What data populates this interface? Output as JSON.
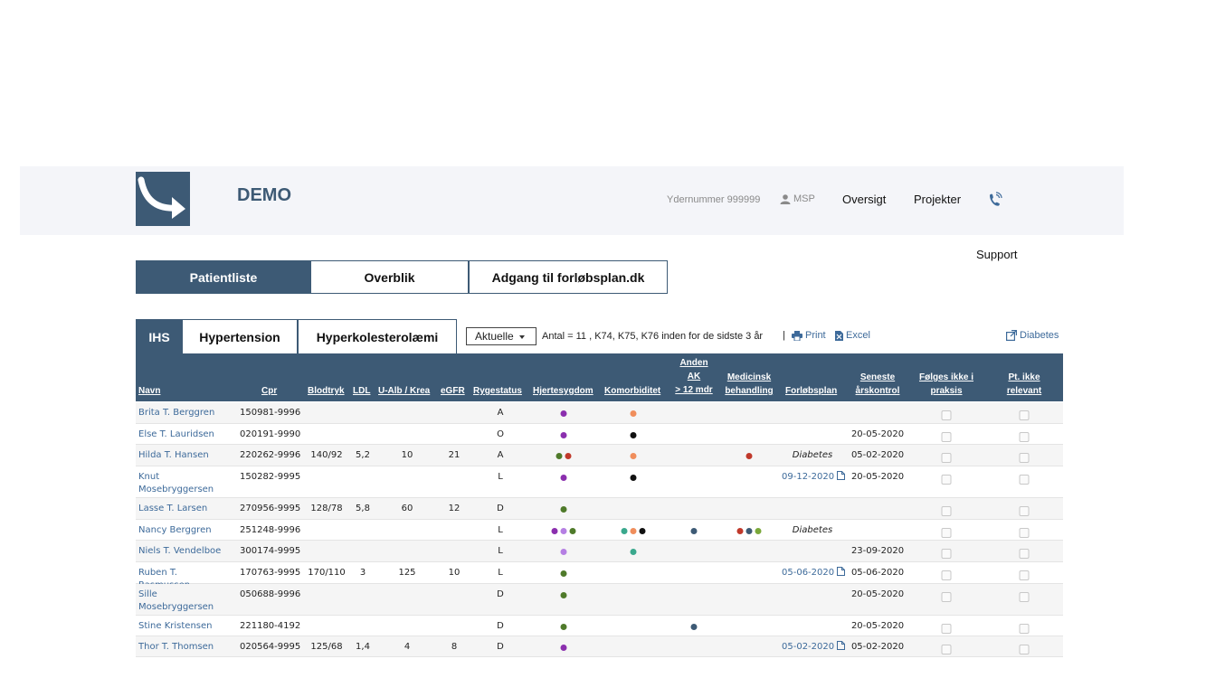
{
  "header": {
    "brand": "DEMO",
    "ydernummer": "Ydernummer 999999",
    "user": "MSP",
    "nav": [
      "Oversigt",
      "Projekter"
    ],
    "support": "Support"
  },
  "main_tabs": [
    "Patientliste",
    "Overblik",
    "Adgang til forløbsplan.dk"
  ],
  "sub_tabs": [
    "IHS",
    "Hypertension",
    "Hyperkolesterolæmi"
  ],
  "filter": {
    "selected": "Aktuelle"
  },
  "summary": "Antal = 11 , K74, K75, K76 inden for de sidste 3 år",
  "separator": "|",
  "tools": {
    "print": "Print",
    "excel": "Excel",
    "diabetes": "Diabetes"
  },
  "columns": {
    "navn": "Navn",
    "cpr": "Cpr",
    "blodtryk": "Blodtryk",
    "ldl": "LDL",
    "ualb": "U-Alb / Krea",
    "egfr": "eGFR",
    "rygestatus": "Rygestatus",
    "hjerte": "Hjertesygdom",
    "komorb": "Komorbiditet",
    "anden_ak": [
      "Anden",
      "AK",
      "> 12 mdr"
    ],
    "medicinsk": [
      "Medicinsk",
      "behandling"
    ],
    "forlob": "Forløbsplan",
    "seneste": [
      "Seneste",
      "årskontrol"
    ],
    "folges": [
      "Følges ikke i",
      "praksis"
    ],
    "ptikke": [
      "Pt. ikke",
      "relevant"
    ]
  },
  "colors": {
    "purple": "#8b2fae",
    "lavender": "#b57fe3",
    "green": "#4f7a2a",
    "red": "#c0392b",
    "orange": "#f08e5c",
    "black": "#111111",
    "teal": "#3aa88d",
    "navy": "#3d5a75",
    "olive": "#7aa83a",
    "header_bg": "#3d5a75"
  },
  "patients": [
    {
      "name": "Brita T. Berggren",
      "cpr": "150981-9996",
      "bt": "",
      "ldl": "",
      "ualb": "",
      "egfr": "",
      "ryg": "A",
      "hjerte": [
        "purple"
      ],
      "komorb": [
        "orange"
      ],
      "ak": [],
      "med": [],
      "plan": "",
      "plan_type": "",
      "seneste": ""
    },
    {
      "name": "Else T. Lauridsen",
      "cpr": "020191-9990",
      "bt": "",
      "ldl": "",
      "ualb": "",
      "egfr": "",
      "ryg": "O",
      "hjerte": [
        "purple"
      ],
      "komorb": [
        "black"
      ],
      "ak": [],
      "med": [],
      "plan": "",
      "plan_type": "",
      "seneste": "20-05-2020"
    },
    {
      "name": "Hilda T. Hansen",
      "cpr": "220262-9996",
      "bt": "140/92",
      "ldl": "5,2",
      "ualb": "10",
      "egfr": "21",
      "ryg": "A",
      "hjerte": [
        "green",
        "red"
      ],
      "komorb": [
        "orange"
      ],
      "ak": [],
      "med": [
        "red"
      ],
      "plan": "Diabetes",
      "plan_type": "text",
      "seneste": "05-02-2020"
    },
    {
      "name": "Knut Mosebryggersen",
      "cpr": "150282-9995",
      "bt": "",
      "ldl": "",
      "ualb": "",
      "egfr": "",
      "ryg": "L",
      "hjerte": [
        "purple"
      ],
      "komorb": [
        "black"
      ],
      "ak": [],
      "med": [],
      "plan": "09-12-2020",
      "plan_type": "link",
      "seneste": "20-05-2020"
    },
    {
      "name": "Lasse T. Larsen",
      "cpr": "270956-9995",
      "bt": "128/78",
      "ldl": "5,8",
      "ualb": "60",
      "egfr": "12",
      "ryg": "D",
      "hjerte": [
        "green"
      ],
      "komorb": [],
      "ak": [],
      "med": [],
      "plan": "",
      "plan_type": "",
      "seneste": ""
    },
    {
      "name": "Nancy Berggren",
      "cpr": "251248-9996",
      "bt": "",
      "ldl": "",
      "ualb": "",
      "egfr": "",
      "ryg": "L",
      "hjerte": [
        "purple",
        "lavender",
        "green"
      ],
      "komorb": [
        "teal",
        "orange",
        "black"
      ],
      "ak": [
        "navy"
      ],
      "med": [
        "red",
        "navy",
        "olive"
      ],
      "plan": "Diabetes",
      "plan_type": "text",
      "seneste": ""
    },
    {
      "name": "Niels T. Vendelboe",
      "cpr": "300174-9995",
      "bt": "",
      "ldl": "",
      "ualb": "",
      "egfr": "",
      "ryg": "L",
      "hjerte": [
        "lavender"
      ],
      "komorb": [
        "teal"
      ],
      "ak": [],
      "med": [],
      "plan": "",
      "plan_type": "",
      "seneste": "23-09-2020"
    },
    {
      "name": "Ruben T. Rasmussen",
      "cpr": "170763-9995",
      "bt": "170/110",
      "ldl": "3",
      "ualb": "125",
      "egfr": "10",
      "ryg": "L",
      "hjerte": [
        "green"
      ],
      "komorb": [],
      "ak": [],
      "med": [],
      "plan": "05-06-2020",
      "plan_type": "link",
      "seneste": "05-06-2020"
    },
    {
      "name": "Sille Mosebryggersen",
      "cpr": "050688-9996",
      "bt": "",
      "ldl": "",
      "ualb": "",
      "egfr": "",
      "ryg": "D",
      "hjerte": [
        "green"
      ],
      "komorb": [],
      "ak": [],
      "med": [],
      "plan": "",
      "plan_type": "",
      "seneste": "20-05-2020"
    },
    {
      "name": "Stine Kristensen",
      "cpr": "221180-4192",
      "bt": "",
      "ldl": "",
      "ualb": "",
      "egfr": "",
      "ryg": "D",
      "hjerte": [
        "green"
      ],
      "komorb": [],
      "ak": [
        "navy"
      ],
      "med": [],
      "plan": "",
      "plan_type": "",
      "seneste": "20-05-2020"
    },
    {
      "name": "Thor T. Thomsen",
      "cpr": "020564-9995",
      "bt": "125/68",
      "ldl": "1,4",
      "ualb": "4",
      "egfr": "8",
      "ryg": "D",
      "hjerte": [
        "purple"
      ],
      "komorb": [],
      "ak": [],
      "med": [],
      "plan": "05-02-2020",
      "plan_type": "link",
      "seneste": "05-02-2020"
    }
  ]
}
